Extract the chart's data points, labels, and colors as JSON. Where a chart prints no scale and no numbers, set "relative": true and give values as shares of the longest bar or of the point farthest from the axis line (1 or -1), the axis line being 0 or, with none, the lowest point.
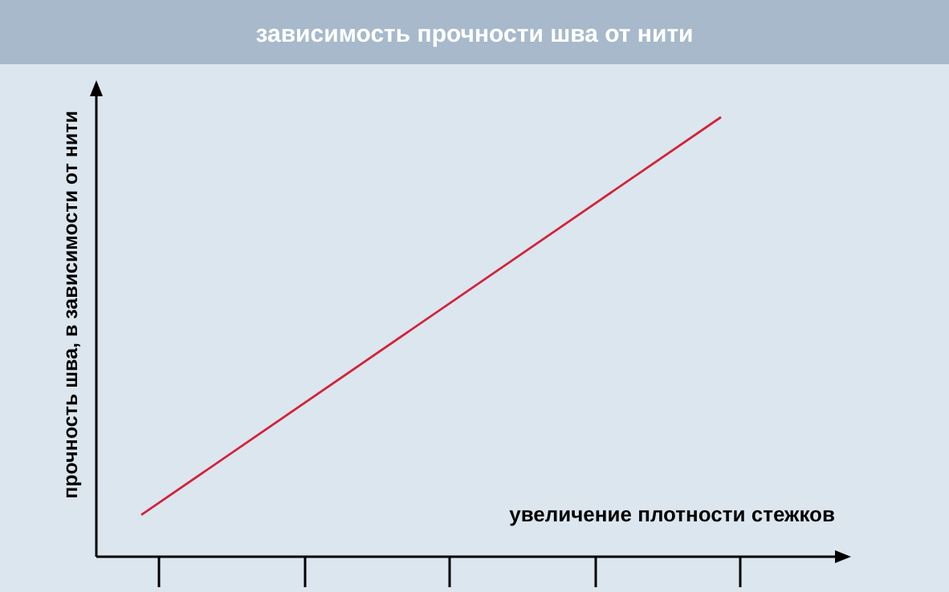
{
  "chart_data": {
    "type": "line",
    "title": "зависимость прочности шва от нити",
    "xlabel": "увеличение плотности стежков",
    "ylabel": "прочность шва, в зависимости от нити",
    "relative": true,
    "categories": [
      null,
      null
    ],
    "series": [
      {
        "color": "#d2233c",
        "values": [
          0.095,
          1
        ]
      }
    ],
    "line_style": "solid"
  }
}
